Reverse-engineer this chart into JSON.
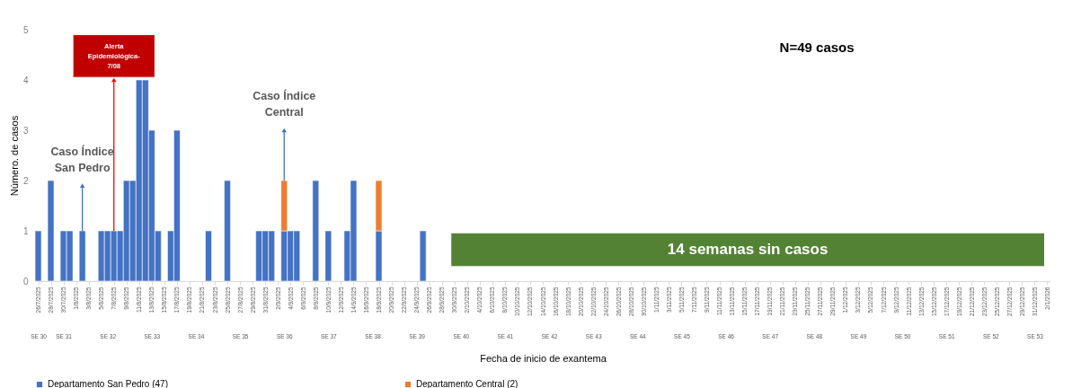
{
  "chart_data": {
    "type": "bar",
    "stacked": true,
    "xlabel": "Fecha de inicio de exantema",
    "ylabel": "Número. de casos",
    "x": [
      "2025-07-26",
      "2025-07-28",
      "2025-07-30",
      "2025-07-31",
      "2025-08-02",
      "2025-08-05",
      "2025-08-06",
      "2025-08-07",
      "2025-08-08",
      "2025-08-09",
      "2025-08-10",
      "2025-08-11",
      "2025-08-12",
      "2025-08-13",
      "2025-08-14",
      "2025-08-16",
      "2025-08-17",
      "2025-08-22",
      "2025-08-25",
      "2025-08-30",
      "2025-08-31",
      "2025-09-01",
      "2025-09-03",
      "2025-09-04",
      "2025-09-05",
      "2025-09-08",
      "2025-09-10",
      "2025-09-13",
      "2025-09-14",
      "2025-09-18",
      "2025-09-25"
    ],
    "series": [
      {
        "name": "Departamento San Pedro (47)",
        "color": "#4472c4",
        "values": [
          1,
          2,
          1,
          1,
          1,
          1,
          1,
          1,
          1,
          2,
          2,
          4,
          4,
          3,
          1,
          1,
          3,
          1,
          2,
          1,
          1,
          1,
          1,
          1,
          1,
          2,
          1,
          1,
          2,
          1,
          1
        ]
      },
      {
        "name": "Departamento Central (2)",
        "color": "#ed7d31",
        "values": [
          null,
          null,
          null,
          null,
          null,
          null,
          null,
          null,
          null,
          null,
          null,
          null,
          null,
          null,
          null,
          null,
          null,
          null,
          null,
          null,
          null,
          null,
          1,
          null,
          null,
          null,
          null,
          null,
          null,
          1,
          null
        ]
      }
    ],
    "xlim": [
      "2025-07-25T12:00",
      "2026-01-02T12:00"
    ],
    "xticks": [
      {
        "value": "2025-07-26",
        "label": "26/7/2025"
      },
      {
        "value": "2025-07-28",
        "label": "28/7/2025"
      },
      {
        "value": "2025-07-30",
        "label": "30/7/2025"
      },
      {
        "value": "2025-08-01",
        "label": "1/8/2025"
      },
      {
        "value": "2025-08-03",
        "label": "3/8/2025"
      },
      {
        "value": "2025-08-05",
        "label": "5/8/2025"
      },
      {
        "value": "2025-08-07",
        "label": "7/8/2025"
      },
      {
        "value": "2025-08-09",
        "label": "9/8/2025"
      },
      {
        "value": "2025-08-11",
        "label": "11/8/2025"
      },
      {
        "value": "2025-08-13",
        "label": "13/8/2025"
      },
      {
        "value": "2025-08-15",
        "label": "15/8/2025"
      },
      {
        "value": "2025-08-17",
        "label": "17/8/2025"
      },
      {
        "value": "2025-08-19",
        "label": "19/8/2025"
      },
      {
        "value": "2025-08-21",
        "label": "21/8/2025"
      },
      {
        "value": "2025-08-23",
        "label": "23/8/2025"
      },
      {
        "value": "2025-08-25",
        "label": "25/8/2025"
      },
      {
        "value": "2025-08-27",
        "label": "27/8/2025"
      },
      {
        "value": "2025-08-29",
        "label": "29/8/2025"
      },
      {
        "value": "2025-08-31",
        "label": "31/8/2025"
      },
      {
        "value": "2025-09-02",
        "label": "2/9/2025"
      },
      {
        "value": "2025-09-04",
        "label": "4/9/2025"
      },
      {
        "value": "2025-09-06",
        "label": "6/9/2025"
      },
      {
        "value": "2025-09-08",
        "label": "8/9/2025"
      },
      {
        "value": "2025-09-10",
        "label": "10/9/2025"
      },
      {
        "value": "2025-09-12",
        "label": "12/9/2025"
      },
      {
        "value": "2025-09-14",
        "label": "14/9/2025"
      },
      {
        "value": "2025-09-16",
        "label": "16/9/2025"
      },
      {
        "value": "2025-09-18",
        "label": "18/9/2025"
      },
      {
        "value": "2025-09-20",
        "label": "20/9/2025"
      },
      {
        "value": "2025-09-22",
        "label": "22/9/2025"
      },
      {
        "value": "2025-09-24",
        "label": "24/9/2025"
      },
      {
        "value": "2025-09-26",
        "label": "26/9/2025"
      },
      {
        "value": "2025-09-28",
        "label": "28/9/2025"
      },
      {
        "value": "2025-09-30",
        "label": "30/9/2025"
      },
      {
        "value": "2025-10-02",
        "label": "2/10/2025"
      },
      {
        "value": "2025-10-04",
        "label": "4/10/2025"
      },
      {
        "value": "2025-10-06",
        "label": "6/10/2025"
      },
      {
        "value": "2025-10-08",
        "label": "8/10/2025"
      },
      {
        "value": "2025-10-10",
        "label": "10/10/2025"
      },
      {
        "value": "2025-10-12",
        "label": "12/10/2025"
      },
      {
        "value": "2025-10-14",
        "label": "14/10/2025"
      },
      {
        "value": "2025-10-16",
        "label": "16/10/2025"
      },
      {
        "value": "2025-10-18",
        "label": "18/10/2025"
      },
      {
        "value": "2025-10-20",
        "label": "20/10/2025"
      },
      {
        "value": "2025-10-22",
        "label": "22/10/2025"
      },
      {
        "value": "2025-10-24",
        "label": "24/10/2025"
      },
      {
        "value": "2025-10-26",
        "label": "26/10/2025"
      },
      {
        "value": "2025-10-28",
        "label": "28/10/2025"
      },
      {
        "value": "2025-10-30",
        "label": "30/10/2025"
      },
      {
        "value": "2025-11-01",
        "label": "1/11/2025"
      },
      {
        "value": "2025-11-03",
        "label": "3/11/2025"
      },
      {
        "value": "2025-11-05",
        "label": "5/11/2025"
      },
      {
        "value": "2025-11-07",
        "label": "7/11/2025"
      },
      {
        "value": "2025-11-09",
        "label": "9/11/2025"
      },
      {
        "value": "2025-11-11",
        "label": "11/11/2025"
      },
      {
        "value": "2025-11-13",
        "label": "13/11/2025"
      },
      {
        "value": "2025-11-15",
        "label": "15/11/2025"
      },
      {
        "value": "2025-11-17",
        "label": "17/11/2025"
      },
      {
        "value": "2025-11-19",
        "label": "19/11/2025"
      },
      {
        "value": "2025-11-21",
        "label": "21/11/2025"
      },
      {
        "value": "2025-11-23",
        "label": "23/11/2025"
      },
      {
        "value": "2025-11-25",
        "label": "25/11/2025"
      },
      {
        "value": "2025-11-27",
        "label": "27/11/2025"
      },
      {
        "value": "2025-11-29",
        "label": "29/11/2025"
      },
      {
        "value": "2025-12-01",
        "label": "1/12/2025"
      },
      {
        "value": "2025-12-03",
        "label": "3/12/2025"
      },
      {
        "value": "2025-12-05",
        "label": "5/12/2025"
      },
      {
        "value": "2025-12-07",
        "label": "7/12/2025"
      },
      {
        "value": "2025-12-09",
        "label": "9/12/2025"
      },
      {
        "value": "2025-12-11",
        "label": "11/12/2025"
      },
      {
        "value": "2025-12-13",
        "label": "13/12/2025"
      },
      {
        "value": "2025-12-15",
        "label": "15/12/2025"
      },
      {
        "value": "2025-12-17",
        "label": "17/12/2025"
      },
      {
        "value": "2025-12-19",
        "label": "19/12/2025"
      },
      {
        "value": "2025-12-21",
        "label": "21/12/2025"
      },
      {
        "value": "2025-12-23",
        "label": "23/12/2025"
      },
      {
        "value": "2025-12-25",
        "label": "25/12/2025"
      },
      {
        "value": "2025-12-27",
        "label": "27/12/2025"
      },
      {
        "value": "2025-12-29",
        "label": "29/12/2025"
      },
      {
        "value": "2025-12-31",
        "label": "31/12/2025"
      },
      {
        "value": "2026-01-02",
        "label": "2/1/2026"
      }
    ],
    "x2lim": [
      "2025-07-25T12:00",
      "2026-01-02T12:00"
    ],
    "x2ticks": [
      {
        "value": "2025-07-26",
        "label": "SE 30"
      },
      {
        "value": "2025-07-30",
        "label": "SE 31"
      },
      {
        "value": "2025-08-06",
        "label": "SE 32"
      },
      {
        "value": "2025-08-13",
        "label": "SE 33"
      },
      {
        "value": "2025-08-20",
        "label": "SE 34"
      },
      {
        "value": "2025-08-27",
        "label": "SE 35"
      },
      {
        "value": "2025-09-03",
        "label": "SE 36"
      },
      {
        "value": "2025-09-10",
        "label": "SE 37"
      },
      {
        "value": "2025-09-17",
        "label": "SE 38"
      },
      {
        "value": "2025-09-24",
        "label": "SE 39"
      },
      {
        "value": "2025-10-01",
        "label": "SE 40"
      },
      {
        "value": "2025-10-08",
        "label": "SE 41"
      },
      {
        "value": "2025-10-15",
        "label": "SE 42"
      },
      {
        "value": "2025-10-22",
        "label": "SE 43"
      },
      {
        "value": "2025-10-29",
        "label": "SE 44"
      },
      {
        "value": "2025-11-05",
        "label": "SE 45"
      },
      {
        "value": "2025-11-12",
        "label": "SE 46"
      },
      {
        "value": "2025-11-19",
        "label": "SE 47"
      },
      {
        "value": "2025-11-26",
        "label": "SE 48"
      },
      {
        "value": "2025-12-03",
        "label": "SE 49"
      },
      {
        "value": "2025-12-10",
        "label": "SE 50"
      },
      {
        "value": "2025-12-17",
        "label": "SE 51"
      },
      {
        "value": "2025-12-24",
        "label": "SE 52"
      },
      {
        "value": "2025-12-31",
        "label": "SE 53"
      },
      {
        "value": "2025-07-26T12:00",
        "label": null
      },
      {
        "value": "2025-08-02T12:00",
        "label": null
      },
      {
        "value": "2025-08-09T12:00",
        "label": null
      },
      {
        "value": "2025-08-16T12:00",
        "label": null
      },
      {
        "value": "2025-08-23T12:00",
        "label": null
      },
      {
        "value": "2025-08-30T12:00",
        "label": null
      },
      {
        "value": "2025-09-06T12:00",
        "label": null
      },
      {
        "value": "2025-09-13T12:00",
        "label": null
      },
      {
        "value": "2025-09-20T12:00",
        "label": null
      },
      {
        "value": "2025-09-27T12:00",
        "label": null
      },
      {
        "value": "2025-10-04T12:00",
        "label": null
      },
      {
        "value": "2025-10-11T12:00",
        "label": null
      },
      {
        "value": "2025-10-18T12:00",
        "label": null
      },
      {
        "value": "2025-10-25T12:00",
        "label": null
      },
      {
        "value": "2025-11-01T12:00",
        "label": null
      },
      {
        "value": "2025-11-08T12:00",
        "label": null
      },
      {
        "value": "2025-11-15T12:00",
        "label": null
      },
      {
        "value": "2025-11-22T12:00",
        "label": null
      },
      {
        "value": "2025-11-29T12:00",
        "label": null
      },
      {
        "value": "2025-12-06T12:00",
        "label": null
      },
      {
        "value": "2025-12-13T12:00",
        "label": null
      },
      {
        "value": "2025-12-20T12:00",
        "label": null
      },
      {
        "value": "2025-12-27T12:00",
        "label": null
      }
    ],
    "ylim": [
      0,
      5
    ],
    "yticks": [
      0,
      1,
      2,
      3,
      4,
      5
    ],
    "grid": false,
    "legend": "bottom",
    "bands": [
      {
        "axis": "x",
        "from": "2025-09-29T12:00",
        "to": "2026-01-01T12:00",
        "label": "14 semanas sin casos",
        "color": "#548235"
      }
    ],
    "annotations": [
      "N=49 casos",
      {
        "text": "Caso Índice\nSan Pedro",
        "x": "2025-08-02",
        "y": 1.9
      },
      {
        "text": "Alerta\nEpidemiológica-\n7/08",
        "x": "2025-08-07",
        "y": 4
      },
      {
        "text": "Caso Índice\nCentral",
        "x": "2025-09-03",
        "y": 3
      }
    ]
  }
}
